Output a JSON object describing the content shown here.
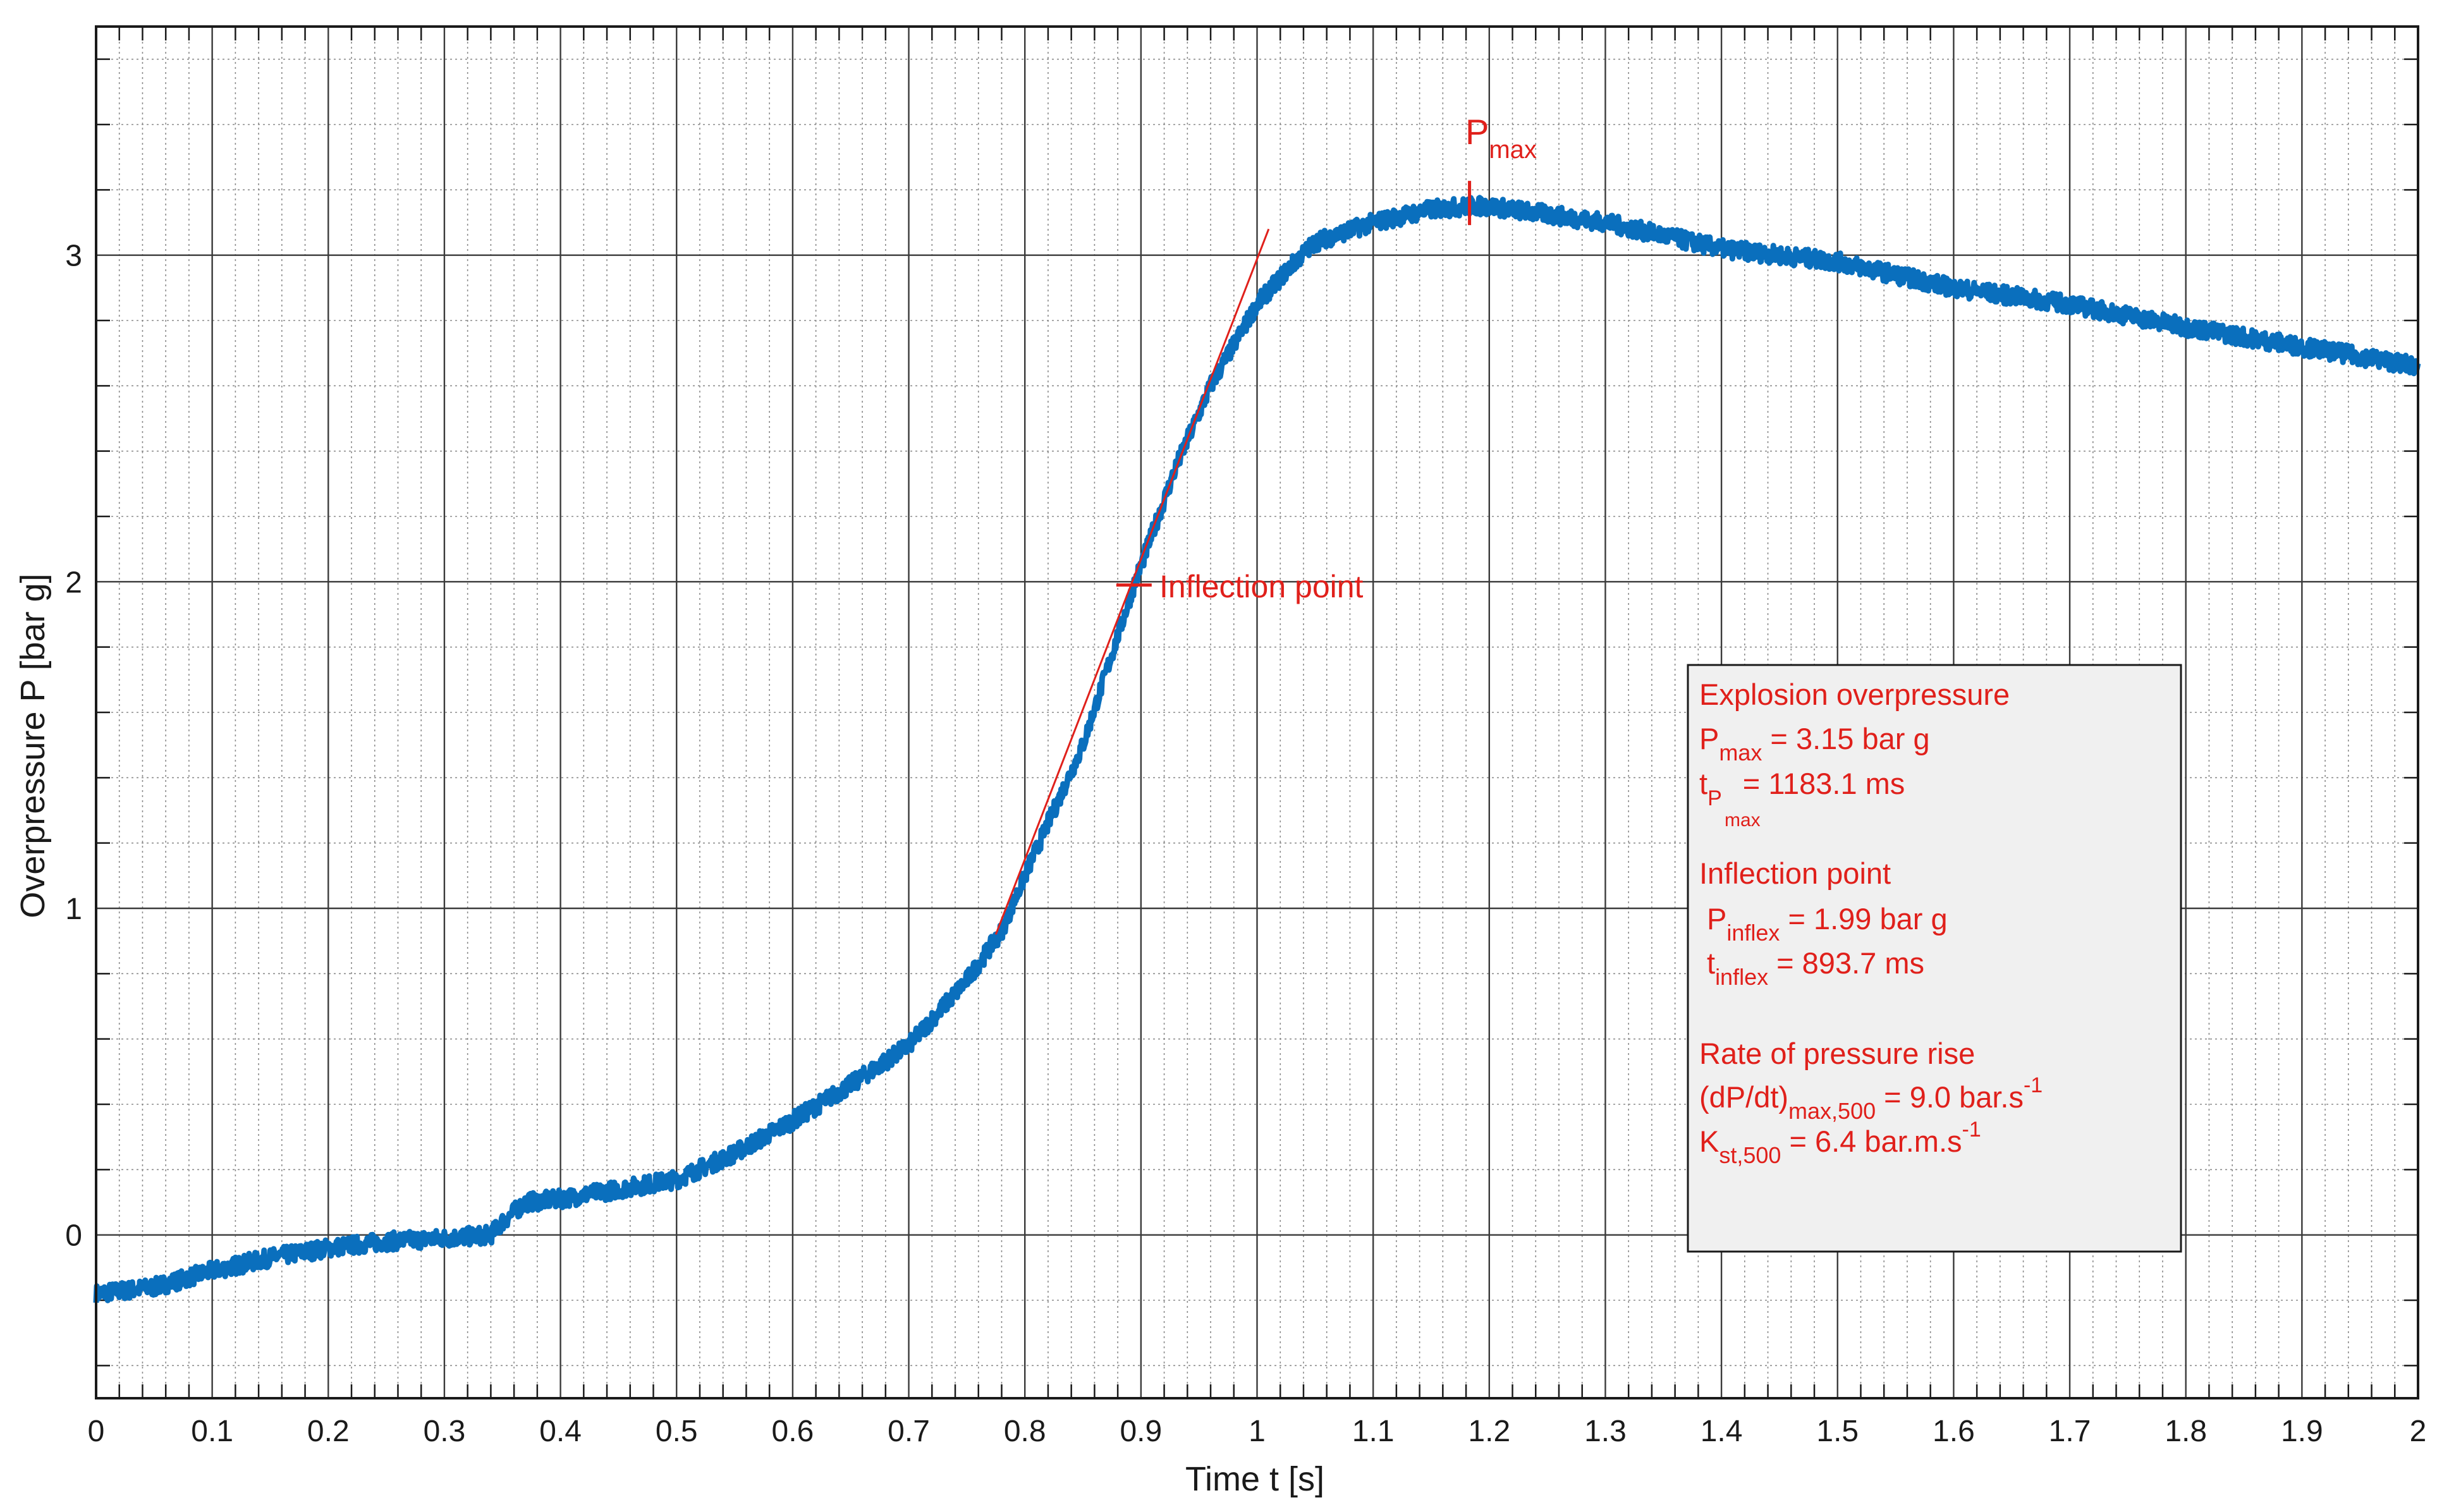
{
  "chart_data": {
    "type": "line",
    "title": "",
    "xlabel": "Time t [s]",
    "ylabel": "Overpressure P [bar g]",
    "xlim": [
      0,
      2
    ],
    "ylim": [
      -0.5,
      3.7
    ],
    "grid": true,
    "minor_grid": true,
    "x_ticks": [
      "0",
      "0.1",
      "0.2",
      "0.3",
      "0.4",
      "0.5",
      "0.6",
      "0.7",
      "0.8",
      "0.9",
      "1",
      "1.1",
      "1.2",
      "1.3",
      "1.4",
      "1.5",
      "1.6",
      "1.7",
      "1.8",
      "1.9",
      "2"
    ],
    "x_tick_values": [
      0,
      0.1,
      0.2,
      0.3,
      0.4,
      0.5,
      0.6,
      0.7,
      0.8,
      0.9,
      1.0,
      1.1,
      1.2,
      1.3,
      1.4,
      1.5,
      1.6,
      1.7,
      1.8,
      1.9,
      2.0
    ],
    "y_ticks": [
      "0",
      "1",
      "2",
      "3"
    ],
    "y_tick_values": [
      0,
      1,
      2,
      3
    ],
    "colors": {
      "series": "#0a6fbd",
      "annotation": "#e0201b",
      "grid_major": "#3a3a3a",
      "grid_minor": "#8c8c8c"
    },
    "series": [
      {
        "x": [
          0.0,
          0.05,
          0.1,
          0.15,
          0.2,
          0.25,
          0.3,
          0.34,
          0.35,
          0.37,
          0.4,
          0.45,
          0.5,
          0.55,
          0.6,
          0.65,
          0.7,
          0.75,
          0.78,
          0.8,
          0.85,
          0.894,
          0.93,
          0.96,
          1.0,
          1.03,
          1.05,
          1.1,
          1.15,
          1.183,
          1.2,
          1.3,
          1.4,
          1.5,
          1.6,
          1.7,
          1.8,
          1.9,
          2.0
        ],
        "y": [
          -0.18,
          -0.16,
          -0.11,
          -0.07,
          -0.04,
          -0.02,
          -0.01,
          0.0,
          0.04,
          0.1,
          0.11,
          0.14,
          0.17,
          0.25,
          0.35,
          0.46,
          0.58,
          0.78,
          0.93,
          1.1,
          1.5,
          1.99,
          2.35,
          2.6,
          2.85,
          2.97,
          3.04,
          3.1,
          3.14,
          3.15,
          3.15,
          3.1,
          3.02,
          2.98,
          2.9,
          2.85,
          2.78,
          2.72,
          2.66
        ]
      }
    ],
    "tangent_line": {
      "x": [
        0.775,
        1.01
      ],
      "y": [
        0.92,
        3.08
      ]
    },
    "annotations": {
      "pmax_label": {
        "base": "P",
        "sub": "max",
        "x": 1.183,
        "y": 3.15
      },
      "inflection_label": {
        "text": "Inflection point",
        "x": 0.894,
        "y": 1.99
      }
    },
    "info_box": {
      "explosion_title": "Explosion overpressure",
      "pmax_base": "P",
      "pmax_sub": "max",
      "pmax_value": " = 3.15 bar g",
      "tpmax_base": "t",
      "tpmax_sub1": "P",
      "tpmax_sub2": "max",
      "tpmax_value": " = 1183.1 ms",
      "inflection_title": "Inflection point",
      "pinflex_base": "P",
      "pinflex_sub": "inflex",
      "pinflex_value": " = 1.99 bar g",
      "tinflex_base": "t",
      "tinflex_sub": "inflex",
      "tinflex_value": " = 893.7 ms",
      "rate_title": "Rate of pressure rise",
      "dpdt_base": "(dP/dt)",
      "dpdt_sub": "max,500",
      "dpdt_value": " = 9.0 bar.s",
      "dpdt_sup": "-1",
      "kst_base": "K",
      "kst_sub": "st,500",
      "kst_value": " = 6.4 bar.m.s",
      "kst_sup": "-1"
    }
  }
}
